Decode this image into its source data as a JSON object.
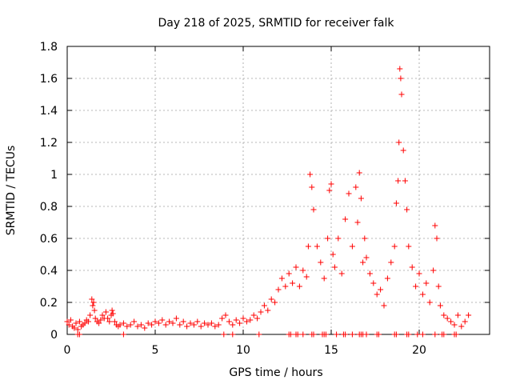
{
  "chart_data": {
    "type": "scatter",
    "title": "Day 218 of 2025, SRMTID for receiver falk",
    "xlabel": "GPS time / hours",
    "ylabel": "SRMTID / TECUs",
    "xlim": [
      0,
      24
    ],
    "ylim": [
      0,
      1.8
    ],
    "xticks": [
      0,
      5,
      10,
      15,
      20
    ],
    "xtick_labels": [
      "0",
      "5",
      "10",
      "15",
      "20"
    ],
    "yticks": [
      0,
      0.2,
      0.4,
      0.6,
      0.8,
      1.0,
      1.2,
      1.4,
      1.6,
      1.8
    ],
    "ytick_labels": [
      "0",
      "0.2",
      "0.4",
      "0.6",
      "0.8",
      "1",
      "1.2",
      "1.4",
      "1.6",
      "1.8"
    ],
    "grid": true,
    "marker": "+",
    "series_color": "#ff0000",
    "series": [
      {
        "name": "SRMTID",
        "x": [
          0.0,
          0.1,
          0.2,
          0.3,
          0.4,
          0.5,
          0.6,
          0.7,
          0.8,
          0.9,
          1.0,
          1.1,
          1.2,
          1.3,
          1.4,
          1.45,
          1.5,
          1.55,
          1.6,
          1.7,
          1.8,
          1.9,
          2.0,
          2.1,
          2.2,
          2.3,
          2.4,
          2.5,
          2.55,
          2.6,
          2.7,
          2.8,
          2.9,
          3.0,
          3.2,
          3.4,
          3.6,
          3.8,
          4.0,
          4.2,
          4.4,
          4.6,
          4.8,
          5.0,
          5.2,
          5.4,
          5.6,
          5.8,
          6.0,
          6.2,
          6.4,
          6.6,
          6.8,
          7.0,
          7.2,
          7.4,
          7.6,
          7.8,
          8.0,
          8.2,
          8.4,
          8.6,
          8.8,
          9.0,
          9.2,
          9.4,
          9.6,
          9.8,
          10.0,
          10.2,
          10.4,
          10.6,
          10.8,
          11.0,
          11.2,
          11.4,
          11.6,
          11.8,
          12.0,
          12.2,
          12.4,
          12.6,
          12.8,
          13.0,
          13.2,
          13.4,
          13.6,
          13.7,
          13.8,
          13.9,
          14.0,
          14.2,
          14.4,
          14.6,
          14.8,
          14.9,
          15.0,
          15.1,
          15.2,
          15.4,
          15.6,
          15.8,
          16.0,
          16.2,
          16.4,
          16.5,
          16.6,
          16.7,
          16.8,
          16.9,
          17.0,
          17.2,
          17.4,
          17.6,
          17.8,
          18.0,
          18.2,
          18.4,
          18.6,
          18.7,
          18.8,
          18.85,
          18.9,
          18.95,
          19.0,
          19.1,
          19.2,
          19.3,
          19.4,
          19.6,
          19.8,
          20.0,
          20.2,
          20.4,
          20.6,
          20.8,
          20.9,
          21.0,
          21.1,
          21.2,
          21.4,
          21.6,
          21.8,
          22.0,
          22.2,
          22.4,
          22.6,
          22.8
        ],
        "values": [
          0.08,
          0.06,
          0.09,
          0.05,
          0.04,
          0.07,
          0.03,
          0.08,
          0.05,
          0.06,
          0.07,
          0.09,
          0.08,
          0.12,
          0.22,
          0.18,
          0.2,
          0.15,
          0.1,
          0.08,
          0.07,
          0.09,
          0.12,
          0.1,
          0.14,
          0.1,
          0.08,
          0.12,
          0.15,
          0.13,
          0.08,
          0.06,
          0.05,
          0.06,
          0.07,
          0.05,
          0.06,
          0.08,
          0.05,
          0.06,
          0.04,
          0.07,
          0.06,
          0.08,
          0.07,
          0.09,
          0.06,
          0.08,
          0.07,
          0.1,
          0.06,
          0.08,
          0.05,
          0.07,
          0.06,
          0.08,
          0.05,
          0.07,
          0.06,
          0.07,
          0.05,
          0.06,
          0.1,
          0.12,
          0.08,
          0.06,
          0.09,
          0.07,
          0.1,
          0.08,
          0.09,
          0.12,
          0.1,
          0.14,
          0.18,
          0.15,
          0.22,
          0.2,
          0.28,
          0.35,
          0.3,
          0.38,
          0.32,
          0.42,
          0.3,
          0.4,
          0.36,
          0.55,
          1.0,
          0.92,
          0.78,
          0.55,
          0.45,
          0.35,
          0.6,
          0.9,
          0.94,
          0.5,
          0.42,
          0.6,
          0.38,
          0.72,
          0.88,
          0.55,
          0.92,
          0.7,
          1.01,
          0.85,
          0.45,
          0.6,
          0.48,
          0.38,
          0.32,
          0.25,
          0.28,
          0.18,
          0.35,
          0.45,
          0.55,
          0.82,
          0.96,
          1.2,
          1.66,
          1.6,
          1.5,
          1.15,
          0.96,
          0.78,
          0.55,
          0.42,
          0.3,
          0.38,
          0.25,
          0.32,
          0.2,
          0.4,
          0.68,
          0.6,
          0.3,
          0.18,
          0.12,
          0.1,
          0.08,
          0.06,
          0.12,
          0.05,
          0.08,
          0.12
        ]
      }
    ],
    "baseline_markers": {
      "name": "zero-value points",
      "x": [
        0.6,
        0.7,
        3.2,
        8.9,
        9.4,
        10.9,
        12.6,
        12.7,
        13.0,
        13.1,
        13.4,
        13.9,
        14.0,
        14.5,
        14.6,
        14.7,
        15.3,
        15.7,
        15.8,
        16.2,
        16.6,
        16.7,
        16.8,
        17.0,
        17.6,
        17.7,
        18.6,
        18.7,
        19.3,
        19.4,
        19.9,
        20.2,
        20.9,
        21.3,
        21.4,
        22.0,
        22.1
      ]
    }
  }
}
